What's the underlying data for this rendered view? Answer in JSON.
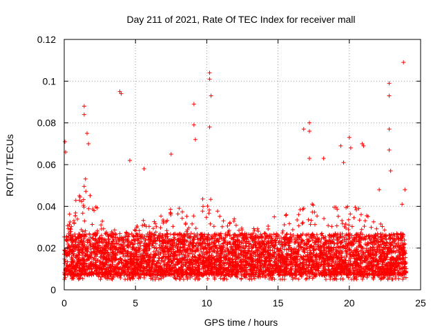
{
  "chart_data": {
    "type": "scatter",
    "title": "Day 211 of 2021, Rate Of TEC Index for receiver mall",
    "xlabel": "GPS time / hours",
    "ylabel": "ROTI / TECUs",
    "xlim": [
      0,
      25
    ],
    "ylim": [
      0,
      0.12
    ],
    "x_ticks": [
      0,
      5,
      10,
      15,
      20,
      25
    ],
    "x_tick_labels": [
      "0",
      "5",
      "10",
      "15",
      "20",
      "25"
    ],
    "y_ticks": [
      0,
      0.02,
      0.04,
      0.06,
      0.08,
      0.1,
      0.12
    ],
    "y_tick_labels": [
      "0",
      "0.02",
      "0.04",
      "0.06",
      "0.08",
      "0.1",
      "0.12"
    ],
    "grid": true,
    "marker": "+",
    "color": "#ff0000",
    "series_description": "dense scatter of ROTI values, mostly 0.005-0.03 TECU/min across 0-24 h",
    "notable_points": [
      {
        "x": 0.05,
        "y": 0.071
      },
      {
        "x": 0.1,
        "y": 0.066
      },
      {
        "x": 1.4,
        "y": 0.088
      },
      {
        "x": 1.4,
        "y": 0.084
      },
      {
        "x": 1.6,
        "y": 0.075
      },
      {
        "x": 1.7,
        "y": 0.07
      },
      {
        "x": 3.9,
        "y": 0.095
      },
      {
        "x": 4.0,
        "y": 0.094
      },
      {
        "x": 4.6,
        "y": 0.062
      },
      {
        "x": 5.6,
        "y": 0.058
      },
      {
        "x": 7.5,
        "y": 0.065
      },
      {
        "x": 9.1,
        "y": 0.089
      },
      {
        "x": 9.1,
        "y": 0.079
      },
      {
        "x": 9.2,
        "y": 0.072
      },
      {
        "x": 10.2,
        "y": 0.104
      },
      {
        "x": 10.2,
        "y": 0.101
      },
      {
        "x": 10.3,
        "y": 0.093
      },
      {
        "x": 10.2,
        "y": 0.078
      },
      {
        "x": 17.2,
        "y": 0.08
      },
      {
        "x": 17.2,
        "y": 0.076
      },
      {
        "x": 17.2,
        "y": 0.063
      },
      {
        "x": 16.8,
        "y": 0.077
      },
      {
        "x": 18.2,
        "y": 0.063
      },
      {
        "x": 19.4,
        "y": 0.069
      },
      {
        "x": 19.6,
        "y": 0.061
      },
      {
        "x": 20.0,
        "y": 0.073
      },
      {
        "x": 20.1,
        "y": 0.068
      },
      {
        "x": 20.9,
        "y": 0.07
      },
      {
        "x": 21.0,
        "y": 0.069
      },
      {
        "x": 22.1,
        "y": 0.048
      },
      {
        "x": 22.8,
        "y": 0.099
      },
      {
        "x": 22.8,
        "y": 0.093
      },
      {
        "x": 22.8,
        "y": 0.077
      },
      {
        "x": 22.8,
        "y": 0.067
      },
      {
        "x": 22.9,
        "y": 0.057
      },
      {
        "x": 23.8,
        "y": 0.109
      },
      {
        "x": 23.9,
        "y": 0.048
      },
      {
        "x": 23.7,
        "y": 0.041
      }
    ],
    "density_profile": [
      {
        "x": 0,
        "upper": 0.035
      },
      {
        "x": 1,
        "upper": 0.045
      },
      {
        "x": 1.5,
        "upper": 0.055
      },
      {
        "x": 2,
        "upper": 0.045
      },
      {
        "x": 3,
        "upper": 0.028
      },
      {
        "x": 4,
        "upper": 0.03
      },
      {
        "x": 5,
        "upper": 0.032
      },
      {
        "x": 6,
        "upper": 0.035
      },
      {
        "x": 7,
        "upper": 0.038
      },
      {
        "x": 8,
        "upper": 0.04
      },
      {
        "x": 9,
        "upper": 0.04
      },
      {
        "x": 10,
        "upper": 0.045
      },
      {
        "x": 11,
        "upper": 0.04
      },
      {
        "x": 12,
        "upper": 0.035
      },
      {
        "x": 13,
        "upper": 0.03
      },
      {
        "x": 14,
        "upper": 0.032
      },
      {
        "x": 15,
        "upper": 0.038
      },
      {
        "x": 16,
        "upper": 0.038
      },
      {
        "x": 17,
        "upper": 0.045
      },
      {
        "x": 18,
        "upper": 0.038
      },
      {
        "x": 19,
        "upper": 0.04
      },
      {
        "x": 20,
        "upper": 0.042
      },
      {
        "x": 21,
        "upper": 0.038
      },
      {
        "x": 22,
        "upper": 0.032
      },
      {
        "x": 23,
        "upper": 0.03
      },
      {
        "x": 24,
        "upper": 0.028
      }
    ]
  }
}
